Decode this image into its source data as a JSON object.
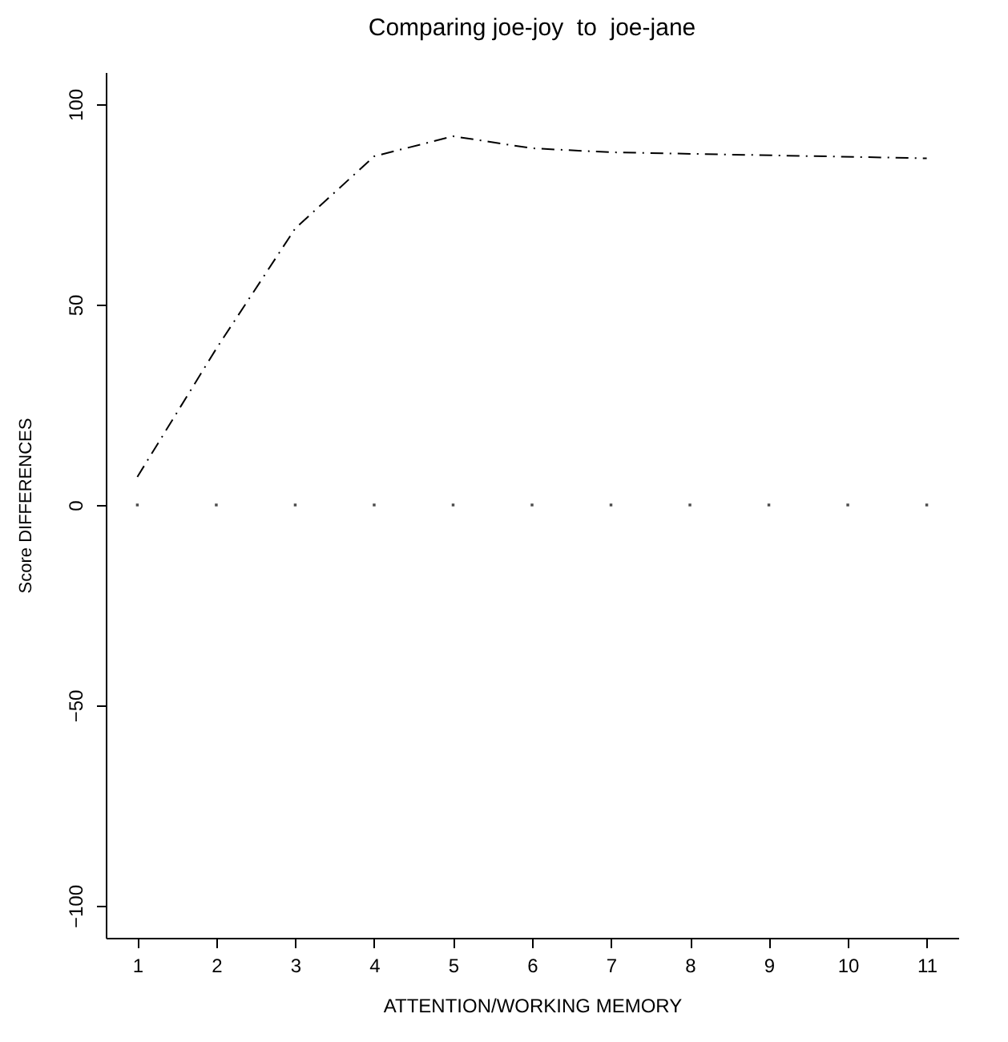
{
  "chart_data": {
    "type": "line",
    "title": "Comparing joe-joy  to  joe-jane",
    "xlabel": "ATTENTION/WORKING MEMORY",
    "ylabel": "Score DIFFERENCES",
    "series": [
      {
        "x": [
          1,
          2,
          3,
          4,
          5,
          6,
          7,
          11
        ],
        "values": [
          7,
          39,
          69,
          87,
          92,
          89,
          88,
          86.5
        ],
        "color": "#000000",
        "line_style": "dashed"
      },
      {
        "type": "scatter",
        "x": [
          1,
          2,
          3,
          4,
          5,
          6,
          7,
          8,
          9,
          10,
          11
        ],
        "values": [
          0,
          0,
          0,
          0,
          0,
          0,
          0,
          0,
          0,
          0,
          0
        ],
        "color": "#000000",
        "marker": "square"
      }
    ],
    "xlim": [
      0.6,
      11.4
    ],
    "ylim": [
      -108,
      108
    ],
    "xticks": [
      1,
      2,
      3,
      4,
      5,
      6,
      7,
      8,
      9,
      10,
      11
    ],
    "yticks": [
      -100,
      -50,
      0,
      50,
      100
    ],
    "grid": false
  }
}
